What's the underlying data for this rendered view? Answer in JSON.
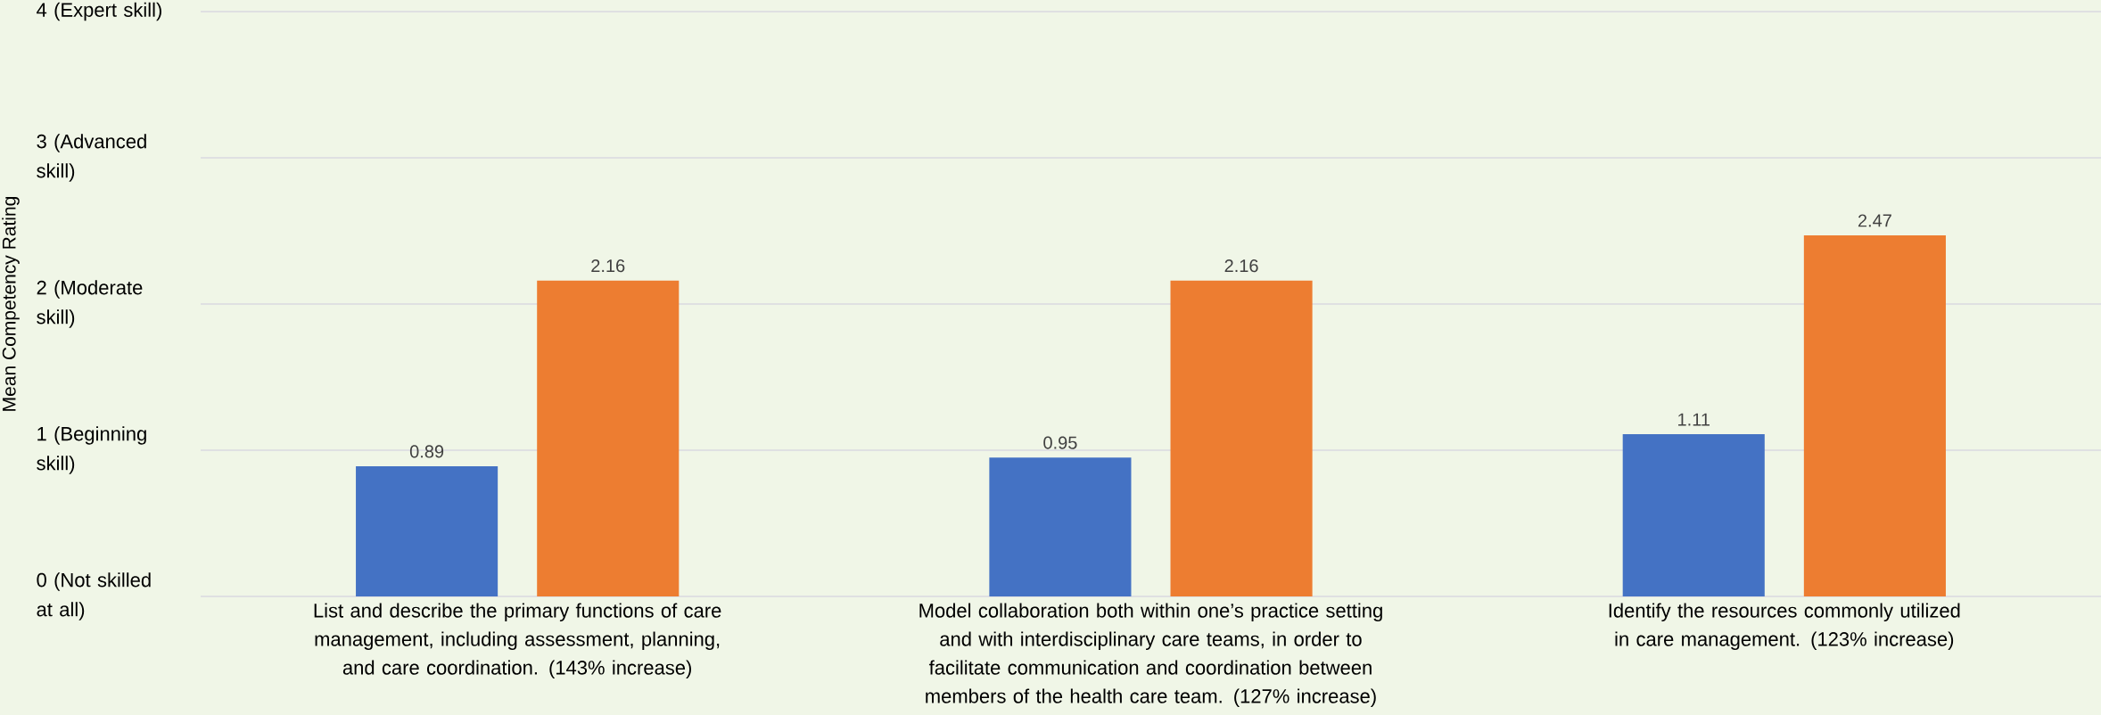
{
  "chart_data": {
    "type": "bar",
    "ylabel": "Mean Competency Rating",
    "categories": [
      "List and describe the primary functions of care management, including assessment, planning, and care coordination. (143% increase)",
      "Model collaboration both within one’s practice setting and with interdisciplinary care teams, in order to facilitate communication and coordination between members of the health care team. (127% increase)",
      "Identify the resources commonly utilized in care management. (123% increase)"
    ],
    "series": [
      {
        "color": "#4472c4",
        "values": [
          0.89,
          0.95,
          1.11
        ]
      },
      {
        "color": "#ed7d31",
        "values": [
          2.16,
          2.16,
          2.47
        ]
      }
    ],
    "ylim": [
      0,
      4
    ],
    "yticks": [
      {
        "value": 0,
        "label": "0 (Not skilled at all)"
      },
      {
        "value": 1,
        "label": "1 (Beginning skill)"
      },
      {
        "value": 2,
        "label": "2 (Moderate skill)"
      },
      {
        "value": 3,
        "label": "3 (Advanced skill)"
      },
      {
        "value": 4,
        "label": "4 (Expert skill)"
      }
    ],
    "grid": "y",
    "data_labels": true,
    "legend": false
  }
}
